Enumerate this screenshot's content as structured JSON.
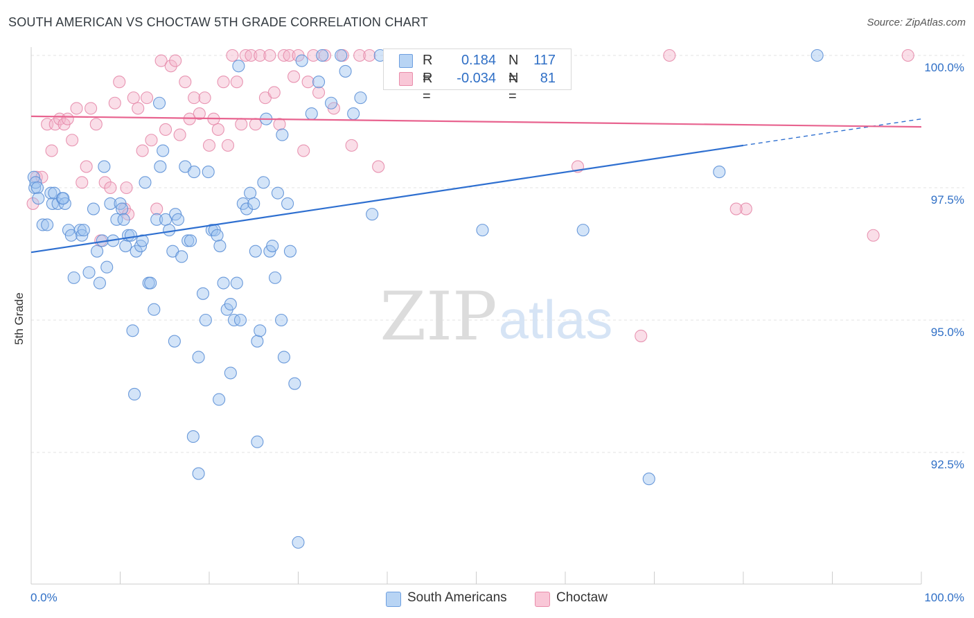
{
  "header": {
    "title": "SOUTH AMERICAN VS CHOCTAW 5TH GRADE CORRELATION CHART",
    "source": "Source: ZipAtlas.com"
  },
  "watermark": {
    "zip": "ZIP",
    "atlas": "atlas"
  },
  "colors": {
    "blue_fill": "#9ec3ef",
    "blue_stroke": "#5b8fd6",
    "blue_line": "#2e6fd0",
    "pink_fill": "#f5b6cb",
    "pink_stroke": "#e58aaa",
    "pink_line": "#e8638f",
    "value_text": "#2f6fc6"
  },
  "legend_top": [
    {
      "r_label": "R =",
      "r_value": "0.184",
      "n_label": "N =",
      "n_value": "117"
    },
    {
      "r_label": "R =",
      "r_value": "-0.034",
      "n_label": "N =",
      "n_value": "81"
    }
  ],
  "chart_data": {
    "type": "scatter",
    "title": "SOUTH AMERICAN VS CHOCTAW 5TH GRADE CORRELATION CHART",
    "xlabel": "",
    "ylabel": "5th Grade",
    "xlim": [
      0,
      100
    ],
    "ylim": [
      90.2,
      100.4
    ],
    "x_tick_labels": [
      "0.0%",
      "100.0%"
    ],
    "y_ticks": [
      {
        "value": 100.0,
        "label": "100.0%"
      },
      {
        "value": 97.5,
        "label": "97.5%"
      },
      {
        "value": 95.0,
        "label": "95.0%"
      },
      {
        "value": 92.5,
        "label": "92.5%"
      }
    ],
    "grid": true,
    "legend_position": "top-center",
    "series": [
      {
        "name": "South Americans",
        "color": "#9ec3ef",
        "r": 0.184,
        "n": 117,
        "trend": {
          "x_start": 0,
          "y_start": 96.28,
          "x_end": 80,
          "y_end": 98.3,
          "dash_x_end": 100,
          "dash_y_end": 98.8
        },
        "points": [
          [
            0.3,
            97.7
          ],
          [
            0.4,
            97.5
          ],
          [
            0.5,
            97.6
          ],
          [
            0.7,
            97.5
          ],
          [
            0.8,
            97.3
          ],
          [
            1.3,
            96.8
          ],
          [
            1.8,
            96.8
          ],
          [
            2.2,
            97.4
          ],
          [
            2.4,
            97.2
          ],
          [
            2.6,
            97.4
          ],
          [
            3.0,
            97.2
          ],
          [
            3.5,
            97.3
          ],
          [
            3.8,
            97.2
          ],
          [
            4.2,
            96.7
          ],
          [
            4.5,
            96.6
          ],
          [
            5.5,
            96.7
          ],
          [
            5.7,
            96.6
          ],
          [
            5.9,
            96.7
          ],
          [
            4.8,
            95.8
          ],
          [
            6.5,
            95.9
          ],
          [
            7.0,
            97.1
          ],
          [
            7.4,
            96.3
          ],
          [
            8.0,
            96.5
          ],
          [
            7.7,
            95.7
          ],
          [
            8.2,
            97.9
          ],
          [
            8.5,
            96.0
          ],
          [
            8.9,
            97.2
          ],
          [
            9.2,
            96.5
          ],
          [
            9.6,
            96.9
          ],
          [
            10.0,
            97.2
          ],
          [
            10.2,
            97.1
          ],
          [
            10.4,
            96.9
          ],
          [
            10.6,
            96.4
          ],
          [
            10.9,
            96.6
          ],
          [
            11.2,
            96.6
          ],
          [
            11.8,
            96.3
          ],
          [
            12.3,
            96.4
          ],
          [
            12.5,
            96.5
          ],
          [
            12.8,
            97.6
          ],
          [
            13.2,
            95.7
          ],
          [
            13.4,
            95.7
          ],
          [
            13.8,
            95.2
          ],
          [
            14.1,
            96.9
          ],
          [
            14.5,
            97.9
          ],
          [
            14.8,
            98.2
          ],
          [
            15.1,
            96.9
          ],
          [
            15.5,
            96.7
          ],
          [
            15.9,
            96.3
          ],
          [
            16.2,
            97.0
          ],
          [
            16.5,
            96.9
          ],
          [
            16.9,
            96.2
          ],
          [
            17.3,
            97.9
          ],
          [
            17.6,
            96.5
          ],
          [
            17.9,
            96.5
          ],
          [
            18.3,
            97.8
          ],
          [
            18.8,
            94.3
          ],
          [
            19.3,
            95.5
          ],
          [
            19.6,
            95.0
          ],
          [
            19.9,
            97.8
          ],
          [
            20.3,
            96.7
          ],
          [
            20.6,
            96.7
          ],
          [
            20.9,
            96.6
          ],
          [
            21.2,
            96.4
          ],
          [
            21.6,
            95.7
          ],
          [
            22.0,
            95.2
          ],
          [
            22.4,
            95.3
          ],
          [
            22.8,
            95.0
          ],
          [
            23.1,
            95.7
          ],
          [
            23.5,
            95.0
          ],
          [
            23.8,
            97.2
          ],
          [
            24.2,
            97.1
          ],
          [
            24.6,
            97.4
          ],
          [
            25.0,
            97.2
          ],
          [
            25.4,
            94.6
          ],
          [
            25.7,
            94.8
          ],
          [
            26.1,
            97.6
          ],
          [
            26.4,
            98.8
          ],
          [
            26.8,
            96.3
          ],
          [
            27.1,
            96.4
          ],
          [
            27.4,
            95.8
          ],
          [
            27.7,
            97.4
          ],
          [
            28.1,
            95.0
          ],
          [
            28.4,
            94.3
          ],
          [
            28.8,
            97.2
          ],
          [
            29.1,
            96.3
          ],
          [
            29.6,
            93.8
          ],
          [
            30.0,
            90.8
          ],
          [
            30.4,
            99.9
          ],
          [
            31.5,
            98.9
          ],
          [
            32.3,
            99.5
          ],
          [
            32.7,
            100.0
          ],
          [
            33.7,
            99.1
          ],
          [
            34.8,
            100.0
          ],
          [
            35.3,
            99.7
          ],
          [
            36.2,
            98.9
          ],
          [
            37.0,
            99.2
          ],
          [
            38.3,
            97.0
          ],
          [
            39.2,
            100.0
          ],
          [
            41.2,
            99.5
          ],
          [
            42.0,
            100.0
          ],
          [
            42.7,
            99.8
          ],
          [
            50.7,
            96.7
          ],
          [
            62.0,
            96.7
          ],
          [
            69.4,
            92.0
          ],
          [
            77.3,
            97.8
          ],
          [
            88.3,
            100.0
          ],
          [
            3.6,
            97.3
          ],
          [
            14.4,
            99.1
          ],
          [
            16.1,
            94.6
          ],
          [
            18.2,
            92.8
          ],
          [
            18.8,
            92.1
          ],
          [
            21.1,
            93.5
          ],
          [
            22.4,
            94.0
          ],
          [
            23.3,
            99.8
          ],
          [
            25.4,
            92.7
          ],
          [
            11.6,
            93.6
          ],
          [
            11.4,
            94.8
          ],
          [
            25.2,
            96.3
          ],
          [
            28.2,
            98.5
          ]
        ]
      },
      {
        "name": "Choctaw",
        "color": "#f5b6cb",
        "r": -0.034,
        "n": 81,
        "trend": {
          "x_start": 0,
          "y_start": 98.85,
          "x_end": 100,
          "y_end": 98.65
        },
        "points": [
          [
            0.2,
            97.2
          ],
          [
            0.6,
            97.7
          ],
          [
            1.2,
            97.7
          ],
          [
            1.8,
            98.7
          ],
          [
            2.3,
            98.2
          ],
          [
            2.7,
            98.7
          ],
          [
            3.2,
            98.8
          ],
          [
            3.7,
            98.7
          ],
          [
            4.1,
            98.8
          ],
          [
            4.6,
            98.4
          ],
          [
            5.1,
            99.0
          ],
          [
            5.7,
            97.6
          ],
          [
            6.2,
            97.9
          ],
          [
            6.7,
            99.0
          ],
          [
            7.3,
            98.7
          ],
          [
            7.8,
            96.5
          ],
          [
            8.3,
            97.6
          ],
          [
            8.9,
            97.5
          ],
          [
            9.4,
            99.1
          ],
          [
            9.9,
            99.5
          ],
          [
            10.5,
            97.1
          ],
          [
            10.9,
            97.0
          ],
          [
            11.5,
            99.2
          ],
          [
            12.0,
            99.0
          ],
          [
            12.5,
            98.2
          ],
          [
            13.0,
            99.2
          ],
          [
            13.5,
            98.4
          ],
          [
            14.1,
            97.1
          ],
          [
            14.6,
            99.9
          ],
          [
            15.1,
            98.6
          ],
          [
            15.7,
            99.8
          ],
          [
            16.2,
            99.9
          ],
          [
            16.7,
            98.5
          ],
          [
            17.3,
            99.5
          ],
          [
            17.8,
            98.8
          ],
          [
            18.3,
            99.2
          ],
          [
            18.9,
            98.9
          ],
          [
            19.5,
            99.2
          ],
          [
            20.0,
            98.3
          ],
          [
            20.5,
            98.8
          ],
          [
            21.0,
            98.6
          ],
          [
            21.6,
            99.5
          ],
          [
            22.1,
            98.3
          ],
          [
            22.6,
            100.0
          ],
          [
            23.1,
            99.5
          ],
          [
            23.6,
            98.7
          ],
          [
            24.1,
            100.0
          ],
          [
            24.7,
            100.0
          ],
          [
            25.2,
            98.7
          ],
          [
            25.7,
            100.0
          ],
          [
            26.3,
            99.2
          ],
          [
            26.8,
            100.0
          ],
          [
            27.3,
            99.3
          ],
          [
            27.9,
            98.7
          ],
          [
            28.4,
            100.0
          ],
          [
            29.0,
            100.0
          ],
          [
            29.5,
            99.6
          ],
          [
            30.0,
            100.0
          ],
          [
            30.6,
            98.2
          ],
          [
            31.1,
            99.5
          ],
          [
            31.7,
            100.0
          ],
          [
            32.3,
            99.3
          ],
          [
            33.0,
            100.0
          ],
          [
            34.0,
            99.0
          ],
          [
            35.0,
            100.0
          ],
          [
            36.0,
            98.3
          ],
          [
            36.9,
            100.0
          ],
          [
            38.0,
            100.0
          ],
          [
            39.0,
            97.9
          ],
          [
            40.5,
            100.0
          ],
          [
            42.3,
            99.7
          ],
          [
            48.5,
            100.0
          ],
          [
            56.5,
            100.0
          ],
          [
            61.4,
            97.9
          ],
          [
            71.7,
            100.0
          ],
          [
            80.3,
            97.1
          ],
          [
            94.6,
            96.6
          ],
          [
            98.5,
            100.0
          ],
          [
            79.2,
            97.1
          ],
          [
            68.5,
            94.7
          ],
          [
            10.7,
            97.5
          ]
        ]
      }
    ]
  },
  "legend_bottom": [
    {
      "label": "South Americans"
    },
    {
      "label": "Choctaw"
    }
  ]
}
